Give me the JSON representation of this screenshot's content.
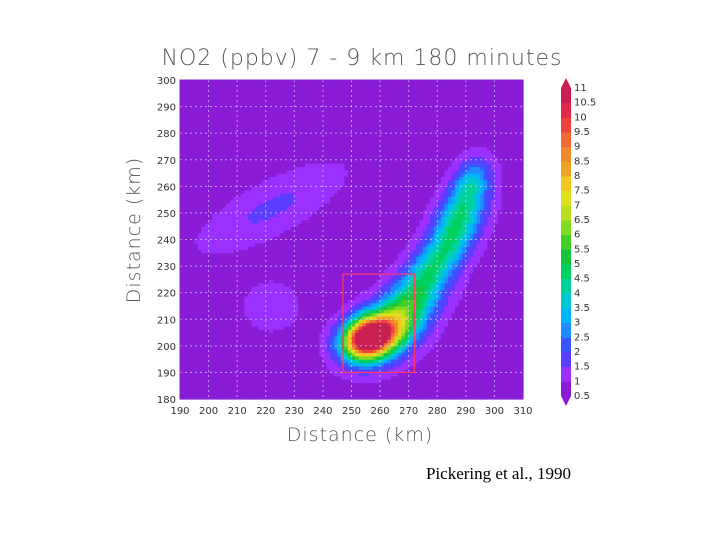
{
  "chart_data": {
    "type": "heatmap",
    "title": "NO2 (ppbv)  7 - 9 km  180 minutes",
    "xlabel": "Distance (km)",
    "ylabel": "Distance (km)",
    "xlim": [
      190,
      310
    ],
    "ylim": [
      180,
      300
    ],
    "xticks": [
      "190",
      "200",
      "210",
      "220",
      "230",
      "240",
      "250",
      "260",
      "270",
      "280",
      "290",
      "300",
      "310"
    ],
    "yticks": [
      "180",
      "190",
      "200",
      "210",
      "220",
      "230",
      "240",
      "250",
      "260",
      "270",
      "280",
      "290",
      "300"
    ],
    "grid": true,
    "colorbar": {
      "levels": [
        "0.5",
        "1",
        "1.5",
        "2",
        "2.5",
        "3",
        "3.5",
        "4",
        "4.5",
        "5",
        "5.5",
        "6",
        "6.5",
        "7",
        "7.5",
        "8",
        "8.5",
        "9",
        "9.5",
        "10",
        "10.5",
        "11"
      ],
      "min": 0.5,
      "max": 11
    },
    "background_value": 0.8,
    "blobs": [
      {
        "x": 255,
        "y": 203,
        "sx": 6,
        "sy": 5,
        "rot": 35,
        "amp": 9.8
      },
      {
        "x": 262,
        "y": 205,
        "sx": 8,
        "sy": 6,
        "rot": 40,
        "amp": 5
      },
      {
        "x": 270,
        "y": 215,
        "sx": 10,
        "sy": 6,
        "rot": 50,
        "amp": 3
      },
      {
        "x": 280,
        "y": 232,
        "sx": 12,
        "sy": 5,
        "rot": 55,
        "amp": 3.2
      },
      {
        "x": 288,
        "y": 250,
        "sx": 9,
        "sy": 5,
        "rot": 65,
        "amp": 3
      },
      {
        "x": 292,
        "y": 262,
        "sx": 6,
        "sy": 4,
        "rot": 70,
        "amp": 2
      },
      {
        "x": 222,
        "y": 252,
        "sx": 18,
        "sy": 6,
        "rot": 30,
        "amp": 0.8
      },
      {
        "x": 222,
        "y": 215,
        "sx": 8,
        "sy": 8,
        "rot": 0,
        "amp": 0.4
      }
    ],
    "annotation_box": {
      "x0": 247,
      "x1": 272,
      "y0": 190,
      "y1": 227,
      "color": "#ff3b6b"
    }
  },
  "citation": "Pickering et al., 1990"
}
